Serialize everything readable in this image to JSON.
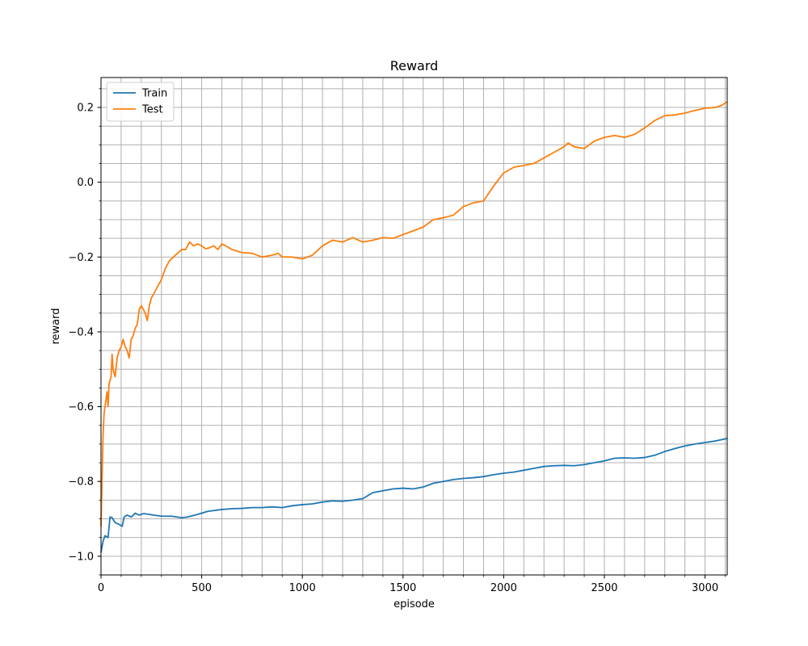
{
  "chart_data": {
    "type": "line",
    "title": "Reward",
    "xlabel": "episode",
    "ylabel": "reward",
    "xlim": [
      0,
      3110
    ],
    "ylim": [
      -1.05,
      0.28
    ],
    "xticks": [
      0,
      500,
      1000,
      1500,
      2000,
      2500,
      3000
    ],
    "xtick_labels": [
      "0",
      "500",
      "1000",
      "1500",
      "2000",
      "2500",
      "3000"
    ],
    "x_minor_step": 100,
    "yticks": [
      -1.0,
      -0.8,
      -0.6,
      -0.4,
      -0.2,
      0.0,
      0.2
    ],
    "ytick_labels": [
      "−1.0",
      "−0.8",
      "−0.6",
      "−0.4",
      "−0.2",
      "0.0",
      "0.2"
    ],
    "y_minor_step": 0.05,
    "grid": true,
    "legend_position": "top-left",
    "series": [
      {
        "name": "Train",
        "color": "#1f77b4",
        "points": [
          [
            0,
            -0.99
          ],
          [
            10,
            -0.96
          ],
          [
            20,
            -0.945
          ],
          [
            35,
            -0.95
          ],
          [
            45,
            -0.895
          ],
          [
            55,
            -0.897
          ],
          [
            70,
            -0.91
          ],
          [
            90,
            -0.915
          ],
          [
            105,
            -0.92
          ],
          [
            115,
            -0.895
          ],
          [
            130,
            -0.89
          ],
          [
            150,
            -0.895
          ],
          [
            170,
            -0.885
          ],
          [
            190,
            -0.89
          ],
          [
            210,
            -0.886
          ],
          [
            240,
            -0.888
          ],
          [
            260,
            -0.89
          ],
          [
            300,
            -0.893
          ],
          [
            350,
            -0.893
          ],
          [
            400,
            -0.897
          ],
          [
            430,
            -0.895
          ],
          [
            480,
            -0.888
          ],
          [
            530,
            -0.88
          ],
          [
            600,
            -0.875
          ],
          [
            650,
            -0.873
          ],
          [
            700,
            -0.872
          ],
          [
            750,
            -0.87
          ],
          [
            800,
            -0.87
          ],
          [
            850,
            -0.868
          ],
          [
            900,
            -0.87
          ],
          [
            950,
            -0.865
          ],
          [
            1000,
            -0.862
          ],
          [
            1050,
            -0.86
          ],
          [
            1100,
            -0.855
          ],
          [
            1150,
            -0.852
          ],
          [
            1200,
            -0.853
          ],
          [
            1250,
            -0.85
          ],
          [
            1300,
            -0.846
          ],
          [
            1350,
            -0.83
          ],
          [
            1400,
            -0.825
          ],
          [
            1450,
            -0.82
          ],
          [
            1500,
            -0.818
          ],
          [
            1550,
            -0.82
          ],
          [
            1600,
            -0.815
          ],
          [
            1650,
            -0.805
          ],
          [
            1700,
            -0.8
          ],
          [
            1750,
            -0.795
          ],
          [
            1800,
            -0.792
          ],
          [
            1850,
            -0.79
          ],
          [
            1900,
            -0.787
          ],
          [
            1950,
            -0.782
          ],
          [
            2000,
            -0.778
          ],
          [
            2050,
            -0.775
          ],
          [
            2100,
            -0.77
          ],
          [
            2150,
            -0.765
          ],
          [
            2200,
            -0.76
          ],
          [
            2250,
            -0.758
          ],
          [
            2300,
            -0.757
          ],
          [
            2350,
            -0.758
          ],
          [
            2400,
            -0.755
          ],
          [
            2450,
            -0.75
          ],
          [
            2500,
            -0.745
          ],
          [
            2550,
            -0.738
          ],
          [
            2600,
            -0.737
          ],
          [
            2650,
            -0.738
          ],
          [
            2700,
            -0.736
          ],
          [
            2750,
            -0.73
          ],
          [
            2800,
            -0.72
          ],
          [
            2850,
            -0.712
          ],
          [
            2900,
            -0.705
          ],
          [
            2950,
            -0.7
          ],
          [
            3000,
            -0.696
          ],
          [
            3050,
            -0.692
          ],
          [
            3110,
            -0.685
          ]
        ]
      },
      {
        "name": "Test",
        "color": "#ff7f0e",
        "points": [
          [
            0,
            -0.92
          ],
          [
            5,
            -0.8
          ],
          [
            10,
            -0.68
          ],
          [
            15,
            -0.62
          ],
          [
            20,
            -0.6
          ],
          [
            25,
            -0.58
          ],
          [
            30,
            -0.56
          ],
          [
            35,
            -0.6
          ],
          [
            40,
            -0.54
          ],
          [
            50,
            -0.52
          ],
          [
            55,
            -0.46
          ],
          [
            60,
            -0.5
          ],
          [
            70,
            -0.52
          ],
          [
            80,
            -0.47
          ],
          [
            90,
            -0.45
          ],
          [
            100,
            -0.44
          ],
          [
            110,
            -0.42
          ],
          [
            120,
            -0.44
          ],
          [
            130,
            -0.45
          ],
          [
            140,
            -0.47
          ],
          [
            150,
            -0.42
          ],
          [
            160,
            -0.41
          ],
          [
            170,
            -0.39
          ],
          [
            180,
            -0.38
          ],
          [
            190,
            -0.34
          ],
          [
            200,
            -0.33
          ],
          [
            210,
            -0.34
          ],
          [
            220,
            -0.35
          ],
          [
            230,
            -0.37
          ],
          [
            240,
            -0.33
          ],
          [
            250,
            -0.31
          ],
          [
            260,
            -0.3
          ],
          [
            280,
            -0.28
          ],
          [
            300,
            -0.26
          ],
          [
            320,
            -0.23
          ],
          [
            340,
            -0.21
          ],
          [
            360,
            -0.2
          ],
          [
            380,
            -0.19
          ],
          [
            400,
            -0.18
          ],
          [
            420,
            -0.18
          ],
          [
            440,
            -0.16
          ],
          [
            460,
            -0.17
          ],
          [
            480,
            -0.165
          ],
          [
            500,
            -0.17
          ],
          [
            520,
            -0.178
          ],
          [
            540,
            -0.175
          ],
          [
            560,
            -0.17
          ],
          [
            580,
            -0.18
          ],
          [
            600,
            -0.165
          ],
          [
            620,
            -0.17
          ],
          [
            650,
            -0.18
          ],
          [
            700,
            -0.188
          ],
          [
            750,
            -0.19
          ],
          [
            800,
            -0.2
          ],
          [
            850,
            -0.195
          ],
          [
            880,
            -0.19
          ],
          [
            900,
            -0.2
          ],
          [
            950,
            -0.2
          ],
          [
            1000,
            -0.205
          ],
          [
            1050,
            -0.195
          ],
          [
            1100,
            -0.17
          ],
          [
            1150,
            -0.155
          ],
          [
            1200,
            -0.16
          ],
          [
            1250,
            -0.148
          ],
          [
            1300,
            -0.16
          ],
          [
            1350,
            -0.155
          ],
          [
            1400,
            -0.148
          ],
          [
            1450,
            -0.15
          ],
          [
            1500,
            -0.14
          ],
          [
            1550,
            -0.13
          ],
          [
            1600,
            -0.12
          ],
          [
            1650,
            -0.1
          ],
          [
            1700,
            -0.095
          ],
          [
            1750,
            -0.088
          ],
          [
            1800,
            -0.065
          ],
          [
            1850,
            -0.055
          ],
          [
            1900,
            -0.05
          ],
          [
            1950,
            -0.01
          ],
          [
            2000,
            0.025
          ],
          [
            2050,
            0.04
          ],
          [
            2100,
            0.045
          ],
          [
            2150,
            0.05
          ],
          [
            2200,
            0.065
          ],
          [
            2250,
            0.08
          ],
          [
            2300,
            0.095
          ],
          [
            2320,
            0.105
          ],
          [
            2350,
            0.095
          ],
          [
            2400,
            0.09
          ],
          [
            2450,
            0.11
          ],
          [
            2500,
            0.12
          ],
          [
            2550,
            0.125
          ],
          [
            2600,
            0.12
          ],
          [
            2650,
            0.128
          ],
          [
            2700,
            0.145
          ],
          [
            2750,
            0.165
          ],
          [
            2800,
            0.178
          ],
          [
            2850,
            0.18
          ],
          [
            2900,
            0.185
          ],
          [
            2950,
            0.192
          ],
          [
            3000,
            0.198
          ],
          [
            3050,
            0.2
          ],
          [
            3080,
            0.205
          ],
          [
            3110,
            0.215
          ]
        ]
      }
    ]
  }
}
